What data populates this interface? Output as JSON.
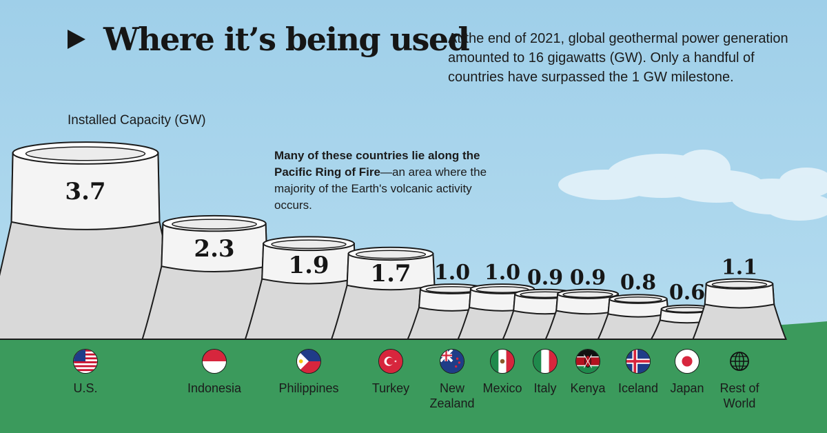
{
  "header": {
    "title": "Where it’s being used",
    "intro": "At the end of 2021, global geothermal power generation amounted to 16 gigawatts (GW). Only a handful of countries have surpassed the 1 GW milestone."
  },
  "callout": {
    "bold": "Many of these countries lie along the Pacific Ring of Fire",
    "text": "—an area where the majority of the Earth's volcanic activity occurs."
  },
  "colors": {
    "sky": "#a9d3ea",
    "grass": "#3b9a5c",
    "tower_body": "#d9d9d9",
    "tower_top": "#f4f4f4",
    "outline": "#1c1c1c"
  },
  "chart_data": {
    "type": "bar",
    "ylabel": "Installed Capacity (GW)",
    "categories": [
      "U.S.",
      "Indonesia",
      "Philippines",
      "Turkey",
      "New\nZealand",
      "Mexico",
      "Italy",
      "Kenya",
      "Iceland",
      "Japan",
      "Rest of\nWorld"
    ],
    "values": [
      3.7,
      2.3,
      1.9,
      1.7,
      1.0,
      1.0,
      0.9,
      0.9,
      0.8,
      0.6,
      1.1
    ],
    "labels": [
      "3.7",
      "2.3",
      "1.9",
      "1.7",
      "1.0",
      "1.0",
      "0.9",
      "0.9",
      "0.8",
      "0.6",
      "1.1"
    ],
    "flags": [
      "us-flag-icon",
      "indonesia-flag-icon",
      "philippines-flag-icon",
      "turkey-flag-icon",
      "new-zealand-flag-icon",
      "mexico-flag-icon",
      "italy-flag-icon",
      "kenya-flag-icon",
      "iceland-flag-icon",
      "japan-flag-icon",
      "globe-icon"
    ]
  }
}
